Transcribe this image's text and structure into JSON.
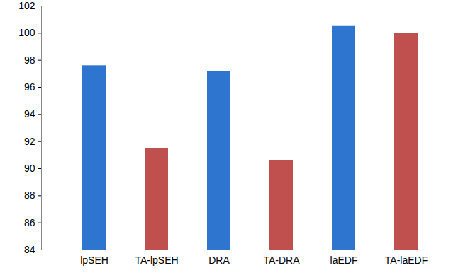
{
  "chart_data": {
    "type": "bar",
    "categories": [
      "lpSEH",
      "TA-lpSEH",
      "DRA",
      "TA-DRA",
      "laEDF",
      "TA-laEDF"
    ],
    "values": [
      97.6,
      91.5,
      97.2,
      90.6,
      100.5,
      100.0
    ],
    "colors": [
      "#2E75D0",
      "#C0504D",
      "#2E75D0",
      "#C0504D",
      "#2E75D0",
      "#C0504D"
    ],
    "ylim": [
      84,
      102
    ],
    "yticks": [
      84,
      86,
      88,
      90,
      92,
      94,
      96,
      98,
      100,
      102
    ],
    "grid": false
  }
}
